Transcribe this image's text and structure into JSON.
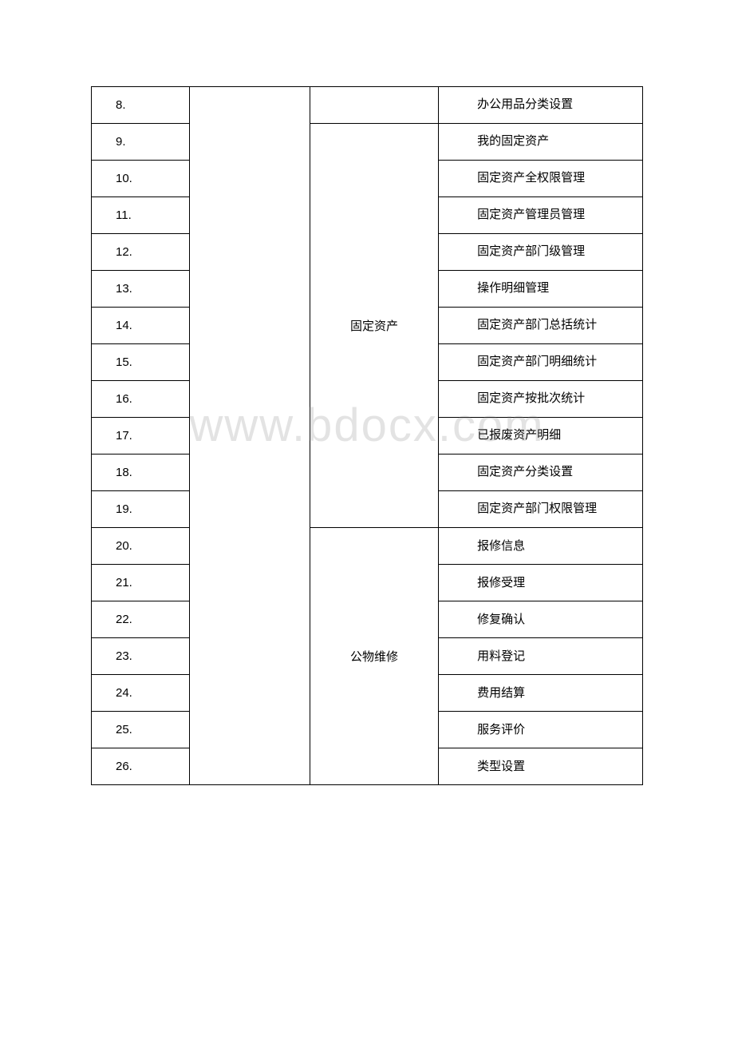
{
  "watermark": "www.bdocx.com",
  "rows": [
    {
      "num": "8.",
      "item": "办公用品分类设置",
      "multiline": true
    },
    {
      "num": "9.",
      "item": "我的固定资产",
      "multiline": true
    },
    {
      "num": "10.",
      "item": "固定资产全权限管理",
      "multiline": true
    },
    {
      "num": "11.",
      "item": "固定资产管理员管理",
      "multiline": true
    },
    {
      "num": "12.",
      "item": "固定资产部门级管理",
      "multiline": true
    },
    {
      "num": "13.",
      "item": "操作明细管理",
      "multiline": true
    },
    {
      "num": "14.",
      "item": "固定资产部门总括统计",
      "multiline": true
    },
    {
      "num": "15.",
      "item": "固定资产部门明细统计",
      "multiline": true
    },
    {
      "num": "16.",
      "item": "固定资产按批次统计",
      "multiline": true
    },
    {
      "num": "17.",
      "item": "已报废资产明细",
      "multiline": true
    },
    {
      "num": "18.",
      "item": "固定资产分类设置",
      "multiline": true
    },
    {
      "num": "19.",
      "item": "固定资产部门权限管理",
      "multiline": true
    },
    {
      "num": "20.",
      "item": "报修信息",
      "multiline": false
    },
    {
      "num": "21.",
      "item": "报修受理",
      "multiline": false
    },
    {
      "num": "22.",
      "item": "修复确认",
      "multiline": false
    },
    {
      "num": "23.",
      "item": "用料登记",
      "multiline": false
    },
    {
      "num": "24.",
      "item": "费用结算",
      "multiline": false
    },
    {
      "num": "25.",
      "item": "服务评价",
      "multiline": false
    },
    {
      "num": "26.",
      "item": "类型设置",
      "multiline": false
    }
  ],
  "categories": {
    "fixed_assets": "固定资产",
    "public_repair": "公物维修"
  },
  "styling": {
    "border_color": "#000000",
    "background_color": "#ffffff",
    "text_color": "#000000",
    "watermark_color": "rgba(128,128,128,0.22)",
    "font_size": 15,
    "col_widths": {
      "num": 122,
      "empty": 150,
      "category": 160,
      "item": 254
    }
  }
}
